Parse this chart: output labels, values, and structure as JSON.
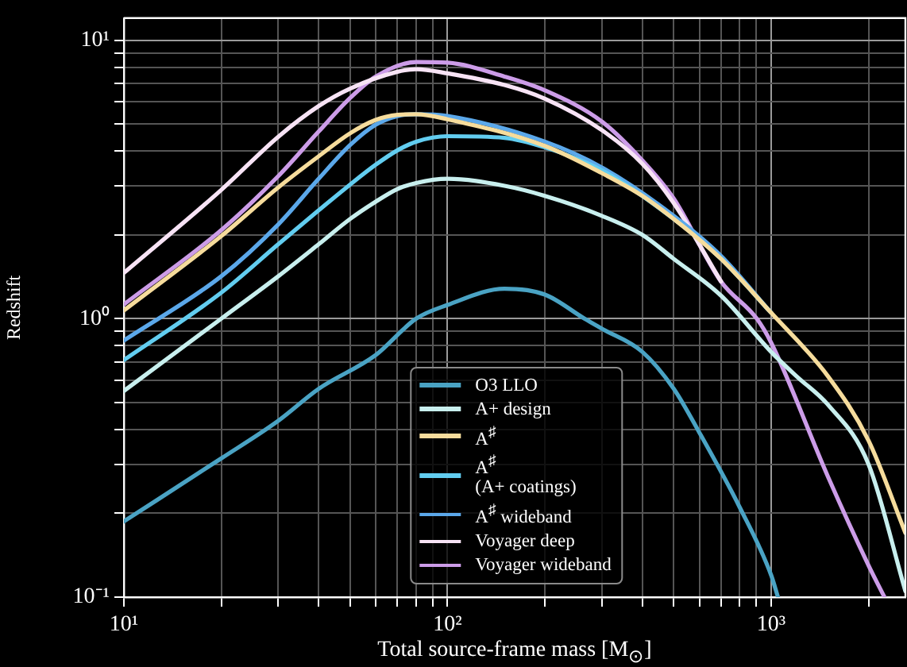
{
  "chart_data": {
    "type": "line",
    "xlabel": "Total source-frame mass [M$_{⊙}$]",
    "ylabel": "Redshift",
    "log": "xy",
    "grid": true,
    "legend": "bottom",
    "marker": "none",
    "line_style": "solid",
    "xlim": [
      10,
      2600
    ],
    "ylim": [
      0.1,
      12
    ],
    "xticks": [
      {
        "value": 10,
        "label": "10¹"
      },
      {
        "value": 20,
        "label": null
      },
      {
        "value": 30,
        "label": null
      },
      {
        "value": 40,
        "label": null
      },
      {
        "value": 50,
        "label": null
      },
      {
        "value": 60,
        "label": null
      },
      {
        "value": 70,
        "label": null
      },
      {
        "value": 80,
        "label": null
      },
      {
        "value": 90,
        "label": null
      },
      {
        "value": 100,
        "label": "10²"
      },
      {
        "value": 200,
        "label": null
      },
      {
        "value": 300,
        "label": null
      },
      {
        "value": 400,
        "label": null
      },
      {
        "value": 500,
        "label": null
      },
      {
        "value": 600,
        "label": null
      },
      {
        "value": 700,
        "label": null
      },
      {
        "value": 800,
        "label": null
      },
      {
        "value": 900,
        "label": null
      },
      {
        "value": 1000,
        "label": "10³"
      },
      {
        "value": 2000,
        "label": null
      }
    ],
    "yticks": [
      {
        "value": 0.1,
        "label": "10⁻¹"
      },
      {
        "value": 0.2,
        "label": null
      },
      {
        "value": 0.3,
        "label": null
      },
      {
        "value": 0.4,
        "label": null
      },
      {
        "value": 0.5,
        "label": null
      },
      {
        "value": 0.6,
        "label": null
      },
      {
        "value": 0.7,
        "label": null
      },
      {
        "value": 0.8,
        "label": null
      },
      {
        "value": 0.9,
        "label": null
      },
      {
        "value": 1,
        "label": "10⁰"
      },
      {
        "value": 2,
        "label": null
      },
      {
        "value": 3,
        "label": null
      },
      {
        "value": 4,
        "label": null
      },
      {
        "value": 5,
        "label": null
      },
      {
        "value": 6,
        "label": null
      },
      {
        "value": 7,
        "label": null
      },
      {
        "value": 8,
        "label": null
      },
      {
        "value": 9,
        "label": null
      },
      {
        "value": 10,
        "label": "10¹"
      }
    ],
    "series": [
      {
        "name": "O3 LLO",
        "color": "#4aa3c4",
        "x": [
          10,
          20,
          30,
          40,
          60,
          80,
          100,
          150,
          200,
          265,
          300,
          400,
          500,
          600,
          800,
          1000,
          1050
        ],
        "values": [
          0.187,
          0.315,
          0.43,
          0.56,
          0.74,
          1.0,
          1.12,
          1.28,
          1.22,
          1.0,
          0.92,
          0.76,
          0.56,
          0.39,
          0.21,
          0.12,
          0.1
        ]
      },
      {
        "name": "A+ design",
        "color": "#c8efee",
        "x": [
          10,
          20,
          30,
          40,
          50,
          60,
          70,
          80,
          100,
          150,
          200,
          300,
          400,
          500,
          700,
          1000,
          1200,
          1500,
          2000,
          2600
        ],
        "values": [
          0.55,
          1.0,
          1.42,
          1.85,
          2.28,
          2.63,
          2.92,
          3.07,
          3.18,
          3.0,
          2.76,
          2.34,
          2.0,
          1.64,
          1.21,
          0.76,
          0.62,
          0.49,
          0.3,
          0.105
        ]
      },
      {
        "name": "A$^{♯}$",
        "color": "#f6dc9c",
        "x": [
          10,
          20,
          30,
          40,
          50,
          60,
          70,
          80,
          100,
          200,
          300,
          400,
          500,
          700,
          1000,
          1500,
          2000,
          2600
        ],
        "values": [
          1.07,
          1.98,
          2.96,
          3.83,
          4.63,
          5.17,
          5.39,
          5.42,
          5.2,
          4.17,
          3.33,
          2.76,
          2.28,
          1.64,
          1.05,
          0.62,
          0.365,
          0.17
        ]
      },
      {
        "name": "A$^{♯}$\n(A+ coatings)",
        "color": "#62cdf0",
        "x": [
          10,
          20,
          30,
          40,
          50,
          60,
          70,
          80,
          100,
          150,
          200,
          300,
          500,
          700,
          1000
        ],
        "values": [
          0.71,
          1.24,
          1.85,
          2.45,
          3.03,
          3.57,
          4.02,
          4.32,
          4.52,
          4.46,
          4.12,
          3.41,
          2.28,
          1.64,
          1.05
        ]
      },
      {
        "name": "A$^{♯}$ wideband",
        "color": "#5ba8ea",
        "x": [
          10,
          20,
          30,
          40,
          50,
          60,
          70,
          80,
          100,
          200,
          300,
          500,
          700,
          1000
        ],
        "values": [
          0.835,
          1.42,
          2.18,
          3.18,
          4.2,
          4.97,
          5.34,
          5.42,
          5.34,
          4.32,
          3.49,
          2.34,
          1.68,
          1.05
        ]
      },
      {
        "name": "Voyager deep",
        "color": "#f7e3f5",
        "x": [
          10,
          20,
          30,
          40,
          50,
          70,
          80,
          100,
          150,
          200,
          300,
          400,
          500,
          700
        ],
        "values": [
          1.46,
          2.9,
          4.5,
          5.8,
          6.7,
          7.7,
          7.87,
          7.6,
          6.9,
          6.16,
          4.75,
          3.6,
          2.6,
          1.36
        ]
      },
      {
        "name": "Voyager wideband",
        "color": "#cc9ce8",
        "x": [
          10,
          20,
          30,
          40,
          50,
          60,
          80,
          100,
          150,
          200,
          300,
          400,
          500,
          700,
          903,
          1000,
          1500,
          2000,
          2240
        ],
        "values": [
          1.125,
          2.08,
          3.25,
          4.7,
          6.2,
          7.4,
          8.35,
          8.3,
          7.4,
          6.6,
          5.1,
          3.7,
          2.7,
          1.36,
          1.0,
          0.82,
          0.27,
          0.13,
          0.1
        ]
      }
    ]
  }
}
